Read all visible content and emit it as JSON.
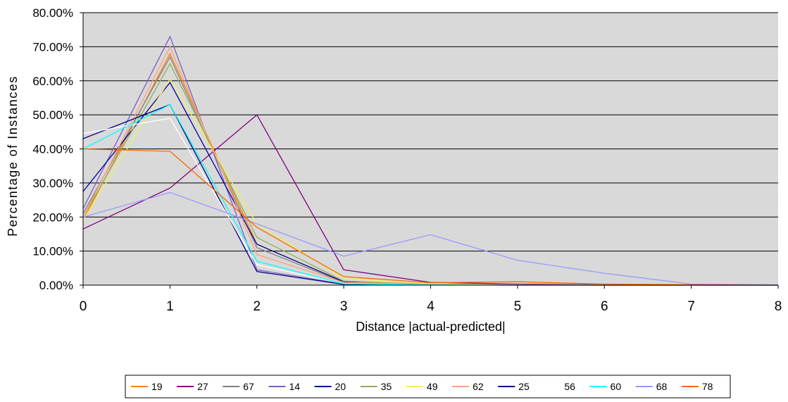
{
  "chart_data": {
    "type": "line",
    "title": "",
    "xlabel": "Distance |actual-predicted|",
    "ylabel": "Percentage of Instances",
    "x": [
      0,
      1,
      2,
      3,
      4,
      5,
      6,
      7,
      8
    ],
    "xlim": [
      0,
      8
    ],
    "ylim": [
      0,
      0.8
    ],
    "y_ticks": [
      "0.00%",
      "10.00%",
      "20.00%",
      "30.00%",
      "40.00%",
      "50.00%",
      "60.00%",
      "70.00%",
      "80.00%"
    ],
    "x_ticks": [
      "0",
      "1",
      "2",
      "3",
      "4",
      "5",
      "6",
      "7",
      "8"
    ],
    "grid": true,
    "plot_background": "#d9d9d9",
    "legend_position": "bottom",
    "series": [
      {
        "name": "19",
        "color": "#ff8000",
        "values": [
          0.19,
          0.68,
          0.12,
          0.01,
          0.003,
          0.001,
          0,
          0,
          0
        ]
      },
      {
        "name": "27",
        "color": "#800080",
        "values": [
          0.165,
          0.285,
          0.5,
          0.045,
          0.008,
          0.003,
          0.001,
          0,
          0
        ]
      },
      {
        "name": "67",
        "color": "#808080",
        "values": [
          0.21,
          0.67,
          0.11,
          0.008,
          0.002,
          0.001,
          0,
          0,
          0
        ]
      },
      {
        "name": "14",
        "color": "#7b5fc4",
        "values": [
          0.225,
          0.73,
          0.045,
          0.003,
          0.001,
          0,
          0,
          0,
          0
        ]
      },
      {
        "name": "20",
        "color": "#0000a0",
        "values": [
          0.275,
          0.595,
          0.12,
          0.01,
          0.002,
          0.001,
          0,
          0,
          0
        ]
      },
      {
        "name": "35",
        "color": "#8fb050",
        "values": [
          0.2,
          0.65,
          0.14,
          0.012,
          0.002,
          0.001,
          0,
          0,
          0
        ]
      },
      {
        "name": "49",
        "color": "#f0f060",
        "values": [
          0.19,
          0.605,
          0.18,
          0.02,
          0.004,
          0.001,
          0,
          0,
          0
        ]
      },
      {
        "name": "62",
        "color": "#ffa07a",
        "values": [
          0.2,
          0.7,
          0.09,
          0.008,
          0.002,
          0.001,
          0,
          0,
          0
        ]
      },
      {
        "name": "25",
        "color": "#000080",
        "values": [
          0.43,
          0.53,
          0.04,
          0.002,
          0.001,
          0,
          0,
          0,
          0
        ]
      },
      {
        "name": "56",
        "color": "#ffffff",
        "values": [
          0.445,
          0.49,
          0.06,
          0.004,
          0.001,
          0,
          0,
          0,
          0
        ]
      },
      {
        "name": "60",
        "color": "#00ffff",
        "values": [
          0.4,
          0.53,
          0.07,
          0.004,
          0.001,
          0,
          0,
          0,
          0
        ]
      },
      {
        "name": "68",
        "color": "#9999ff",
        "values": [
          0.2,
          0.272,
          0.18,
          0.085,
          0.148,
          0.073,
          0.035,
          0.003,
          0.001
        ]
      },
      {
        "name": "78",
        "color": "#ff6600",
        "values": [
          0.4,
          0.393,
          0.17,
          0.025,
          0.007,
          0.01,
          0.003,
          0.001,
          0
        ]
      }
    ]
  }
}
